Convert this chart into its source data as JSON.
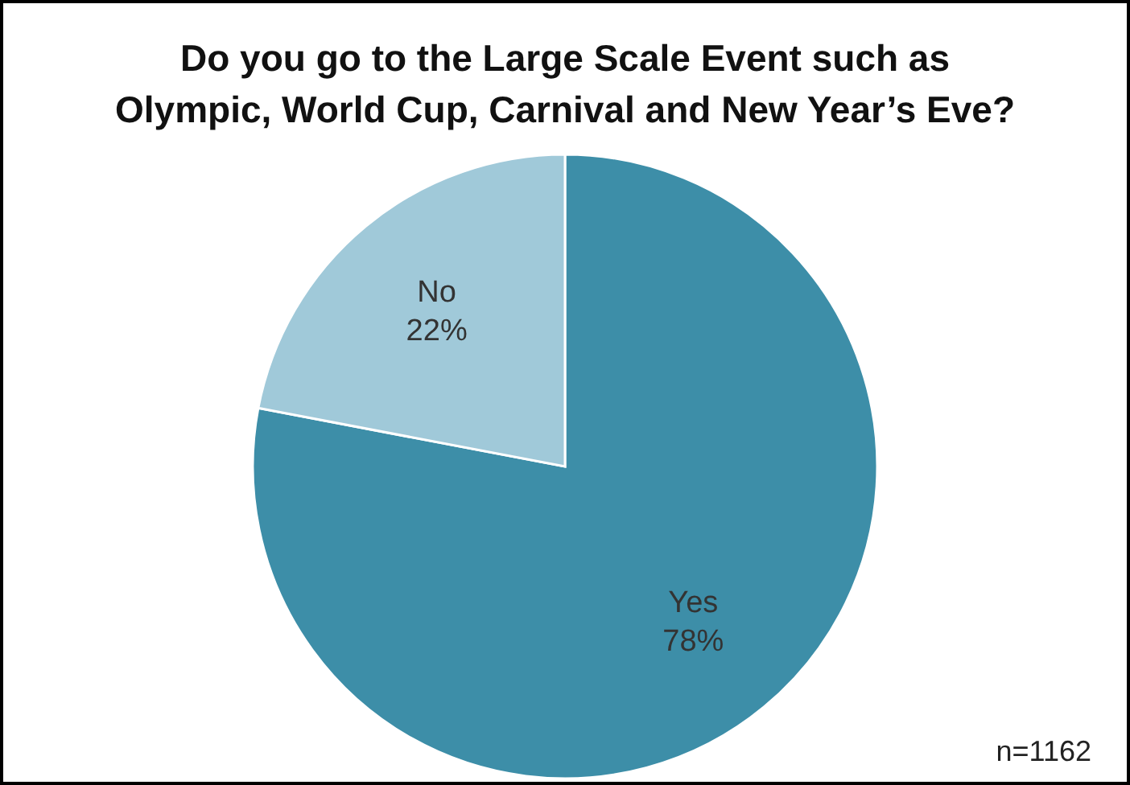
{
  "chart_data": {
    "type": "pie",
    "title": [
      "Do you go to the Large Scale Event such as",
      "Olympic, World Cup, Carnival and New Year’s Eve?"
    ],
    "categories": [
      "Yes",
      "No"
    ],
    "values": [
      78,
      22
    ],
    "colors": [
      "#3d8ea8",
      "#a0c9d9"
    ],
    "value_labels": [
      "78%",
      "22%"
    ],
    "annotations": [
      "n=1162"
    ],
    "legend": false
  }
}
